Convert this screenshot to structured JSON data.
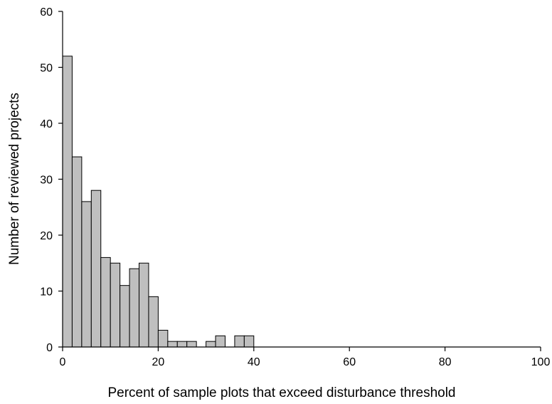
{
  "chart_data": {
    "type": "bar",
    "title": "",
    "xlabel": "Percent of sample plots that exceed disturbance threshold",
    "ylabel": "Number of reviewed projects",
    "xlim": [
      0,
      100
    ],
    "ylim": [
      0,
      60
    ],
    "xticks": [
      0,
      20,
      40,
      60,
      80,
      100
    ],
    "yticks": [
      0,
      10,
      20,
      30,
      40,
      50,
      60
    ],
    "bin_width": 2,
    "bins": [
      {
        "x0": 0,
        "x1": 2,
        "value": 52
      },
      {
        "x0": 2,
        "x1": 4,
        "value": 34
      },
      {
        "x0": 4,
        "x1": 6,
        "value": 26
      },
      {
        "x0": 6,
        "x1": 8,
        "value": 28
      },
      {
        "x0": 8,
        "x1": 10,
        "value": 16
      },
      {
        "x0": 10,
        "x1": 12,
        "value": 15
      },
      {
        "x0": 12,
        "x1": 14,
        "value": 11
      },
      {
        "x0": 14,
        "x1": 16,
        "value": 14
      },
      {
        "x0": 16,
        "x1": 18,
        "value": 15
      },
      {
        "x0": 18,
        "x1": 20,
        "value": 9
      },
      {
        "x0": 20,
        "x1": 22,
        "value": 3
      },
      {
        "x0": 22,
        "x1": 24,
        "value": 1
      },
      {
        "x0": 24,
        "x1": 26,
        "value": 1
      },
      {
        "x0": 26,
        "x1": 28,
        "value": 1
      },
      {
        "x0": 28,
        "x1": 30,
        "value": 0
      },
      {
        "x0": 30,
        "x1": 32,
        "value": 1
      },
      {
        "x0": 32,
        "x1": 34,
        "value": 2
      },
      {
        "x0": 34,
        "x1": 36,
        "value": 0
      },
      {
        "x0": 36,
        "x1": 38,
        "value": 2
      },
      {
        "x0": 38,
        "x1": 40,
        "value": 2
      }
    ],
    "grid": false,
    "legend": "none",
    "bar_color": "#bfbfbf",
    "bar_edge_color": "#000000"
  }
}
